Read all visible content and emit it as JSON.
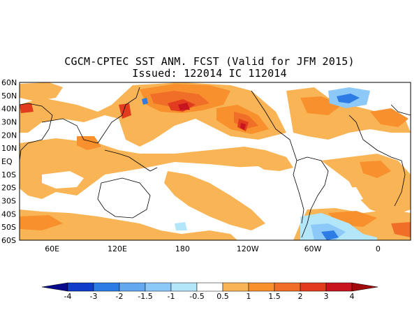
{
  "title": {
    "line1": "CGCM-CPTEC SST ANM. FCST  (Valid for JFM 2015)",
    "line2": "Issued:  122014 IC 112014"
  },
  "map": {
    "lat_labels": [
      "60N",
      "50N",
      "40N",
      "30N",
      "20N",
      "10N",
      "EQ",
      "10S",
      "20S",
      "30S",
      "40S",
      "50S",
      "60S"
    ],
    "lon_labels": [
      "60E",
      "120E",
      "180",
      "120W",
      "60W",
      "0"
    ],
    "lon_range_deg": [
      30,
      390
    ],
    "lat_range_deg": [
      -60,
      60
    ]
  },
  "colorbar": {
    "levels": [
      "-4",
      "-3",
      "-2",
      "-1.5",
      "-1",
      "-0.5",
      "0.5",
      "1",
      "1.5",
      "2",
      "3",
      "4"
    ],
    "colors": {
      "below_-4": "#08088c",
      "-4_-3": "#0f3cc8",
      "-3_-2": "#2d7ce6",
      "-2_-1.5": "#64a8f0",
      "-1.5_-1": "#8cc8f8",
      "-1_-0.5": "#b4e6fa",
      "-0.5_0.5": "#ffffff",
      "0.5_1": "#f8b455",
      "1_1.5": "#f8902d",
      "1.5_2": "#f06e28",
      "2_3": "#e13c1e",
      "3_4": "#c8141e",
      "above_4": "#a00a0a"
    }
  }
}
